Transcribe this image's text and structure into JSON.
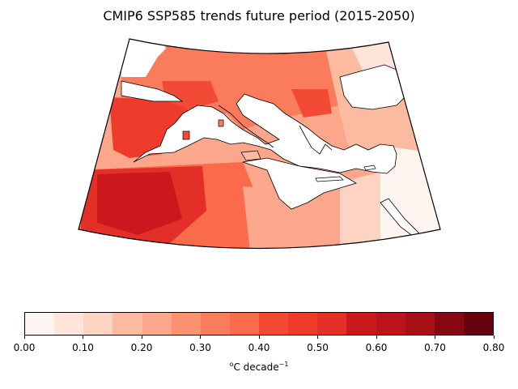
{
  "title": "CMIP6 SSP585 trends future period (2015-2050)",
  "colorbar": {
    "label_unit_o": "o",
    "label_main": "C decade",
    "label_exp": "−1",
    "ticks": [
      "0.00",
      "0.10",
      "0.20",
      "0.30",
      "0.40",
      "0.50",
      "0.60",
      "0.70",
      "0.80"
    ],
    "range": [
      0.0,
      0.8
    ],
    "levels": [
      0.0,
      0.05,
      0.1,
      0.15,
      0.2,
      0.25,
      0.3,
      0.35,
      0.4,
      0.45,
      0.5,
      0.55,
      0.6,
      0.65,
      0.7,
      0.75,
      0.8
    ],
    "colors": [
      "#fff5f0",
      "#fee5d9",
      "#fdd4c2",
      "#fcbba1",
      "#fca68c",
      "#fc9272",
      "#fb7c5c",
      "#fb6a4a",
      "#f34a36",
      "#ef3b2c",
      "#e32f27",
      "#cb181d",
      "#bc141a",
      "#a50f15",
      "#860811",
      "#67000d"
    ]
  },
  "map": {
    "region": "Mediterranean",
    "colormap": "Reds",
    "projection": "conic"
  }
}
